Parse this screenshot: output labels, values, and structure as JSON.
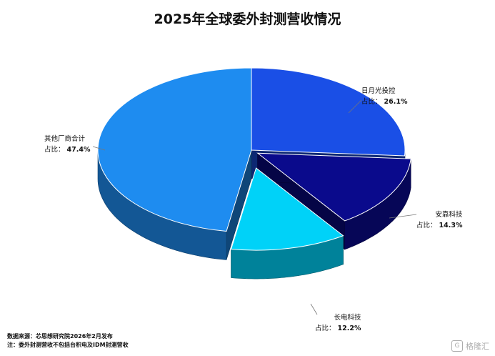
{
  "chart_data": {
    "type": "pie",
    "title": "2025年全球委外封测营收情况",
    "slices": [
      {
        "name": "日月光投控",
        "label_prefix": "占比：",
        "value": 26.1,
        "value_text": "26.1%",
        "color": "#1a4fe6"
      },
      {
        "name": "安靠科技",
        "label_prefix": "占比：",
        "value": 14.3,
        "value_text": "14.3%",
        "color": "#0a0a8c"
      },
      {
        "name": "长电科技",
        "label_prefix": "占比：",
        "value": 12.2,
        "value_text": "12.2%",
        "color": "#00d2f8"
      },
      {
        "name": "其他厂商合计",
        "label_prefix": "占比：",
        "value": 47.4,
        "value_text": "47.4%",
        "color": "#1e8cf0"
      }
    ]
  },
  "footer": {
    "source": "数据来源：芯思想研究院2026年2月发布",
    "note": "注：委外封测营收不包括台积电及IDM封测营收"
  },
  "watermark": {
    "icon": "gelonghui-logo-icon",
    "text": "格隆汇"
  }
}
